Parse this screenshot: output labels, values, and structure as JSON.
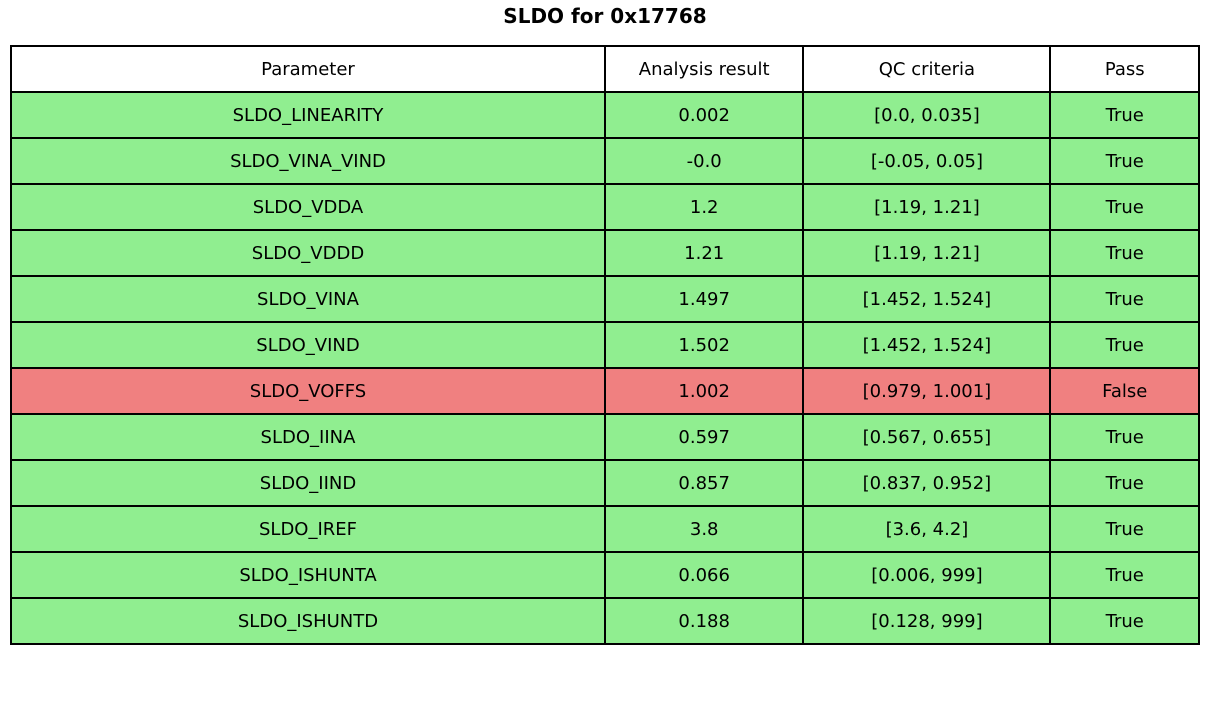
{
  "chart_data": {
    "type": "table",
    "title": "SLDO for 0x17768",
    "columns": [
      "Parameter",
      "Analysis result",
      "QC criteria",
      "Pass"
    ],
    "rows": [
      [
        "SLDO_LINEARITY",
        "0.002",
        "[0.0, 0.035]",
        "True"
      ],
      [
        "SLDO_VINA_VIND",
        "-0.0",
        "[-0.05, 0.05]",
        "True"
      ],
      [
        "SLDO_VDDA",
        "1.2",
        "[1.19, 1.21]",
        "True"
      ],
      [
        "SLDO_VDDD",
        "1.21",
        "[1.19, 1.21]",
        "True"
      ],
      [
        "SLDO_VINA",
        "1.497",
        "[1.452, 1.524]",
        "True"
      ],
      [
        "SLDO_VIND",
        "1.502",
        "[1.452, 1.524]",
        "True"
      ],
      [
        "SLDO_VOFFS",
        "1.002",
        "[0.979, 1.001]",
        "False"
      ],
      [
        "SLDO_IINA",
        "0.597",
        "[0.567, 0.655]",
        "True"
      ],
      [
        "SLDO_IIND",
        "0.857",
        "[0.837, 0.952]",
        "True"
      ],
      [
        "SLDO_IREF",
        "3.8",
        "[3.6, 4.2]",
        "True"
      ],
      [
        "SLDO_ISHUNTA",
        "0.066",
        "[0.006, 999]",
        "True"
      ],
      [
        "SLDO_ISHUNTD",
        "0.188",
        "[0.128, 999]",
        "True"
      ]
    ],
    "layout": {
      "legend": "none",
      "grid": "cell-borders",
      "header_background": "#FFFFFF"
    }
  },
  "colors": {
    "pass_row": "#90EE90",
    "fail_row": "#F08080",
    "border": "#000000",
    "header_bg": "#FFFFFF",
    "text": "#000000",
    "background": "#FFFFFF"
  }
}
